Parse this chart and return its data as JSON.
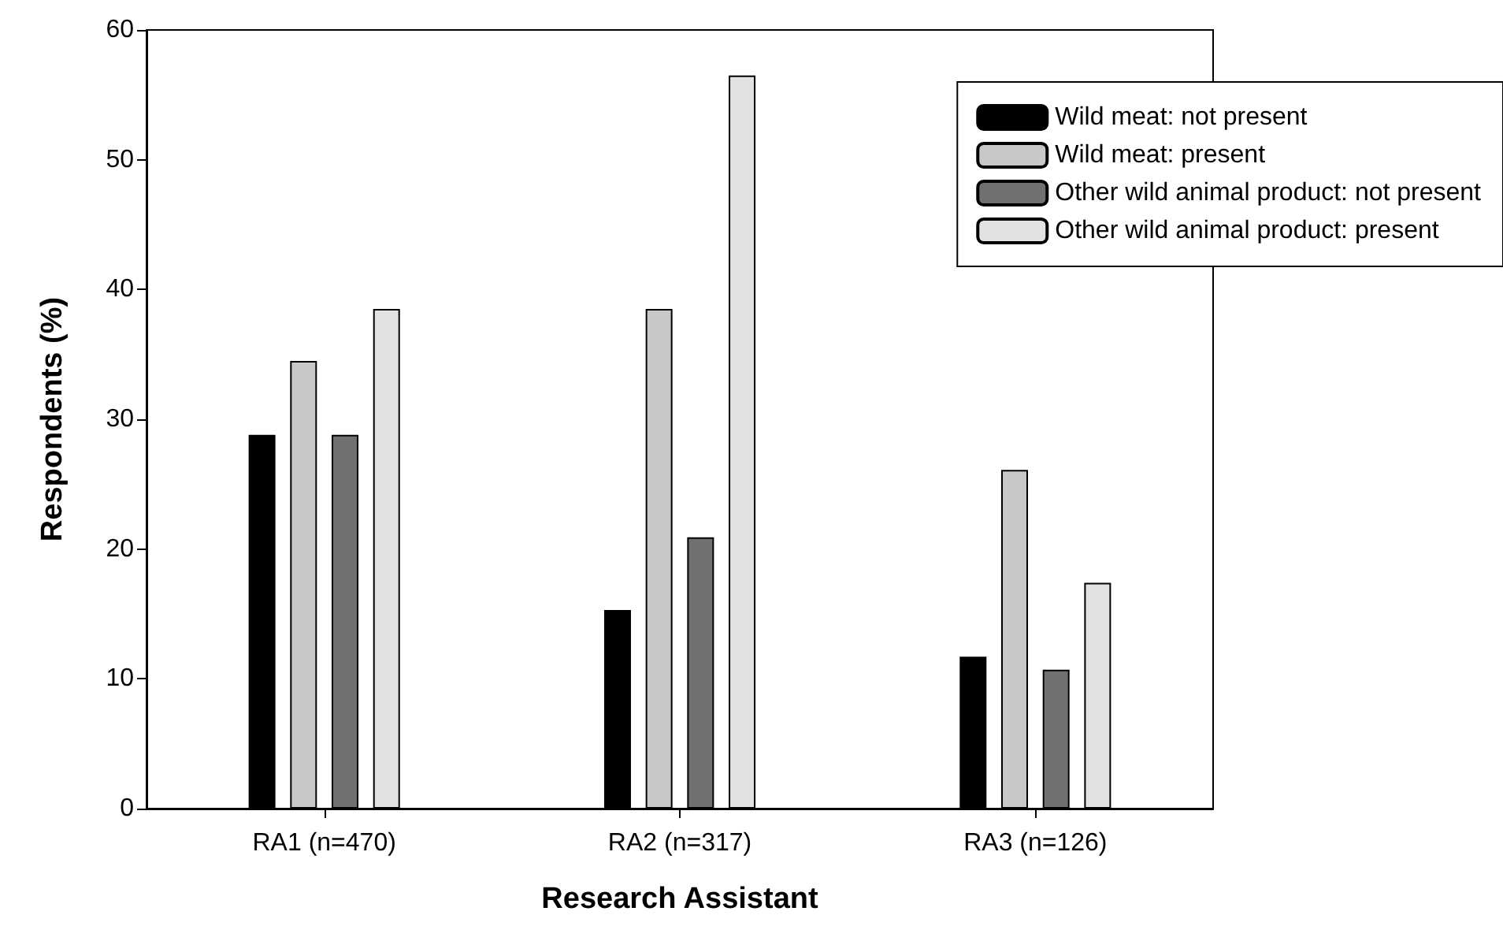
{
  "chart_data": {
    "type": "bar",
    "xlabel": "Research Assistant",
    "ylabel": "Respondents (%)",
    "categories": [
      "RA1 (n=470)",
      "RA2 (n=317)",
      "RA3 (n=126)"
    ],
    "series": [
      {
        "name": "Wild meat: not present",
        "color": "#000000",
        "values": [
          28.8,
          15.3,
          11.7
        ]
      },
      {
        "name": "Wild meat: present",
        "color": "#c8c8c8",
        "values": [
          34.5,
          38.5,
          26.1
        ]
      },
      {
        "name": "Other wild animal product: not present",
        "color": "#707070",
        "values": [
          28.8,
          20.9,
          10.7
        ]
      },
      {
        "name": "Other wild animal product: present",
        "color": "#e2e2e2",
        "values": [
          38.5,
          56.5,
          17.4
        ]
      }
    ],
    "ylim": [
      0,
      60
    ],
    "yticks": [
      0,
      10,
      20,
      30,
      40,
      50,
      60
    ],
    "grid": false,
    "legend": "top right"
  }
}
